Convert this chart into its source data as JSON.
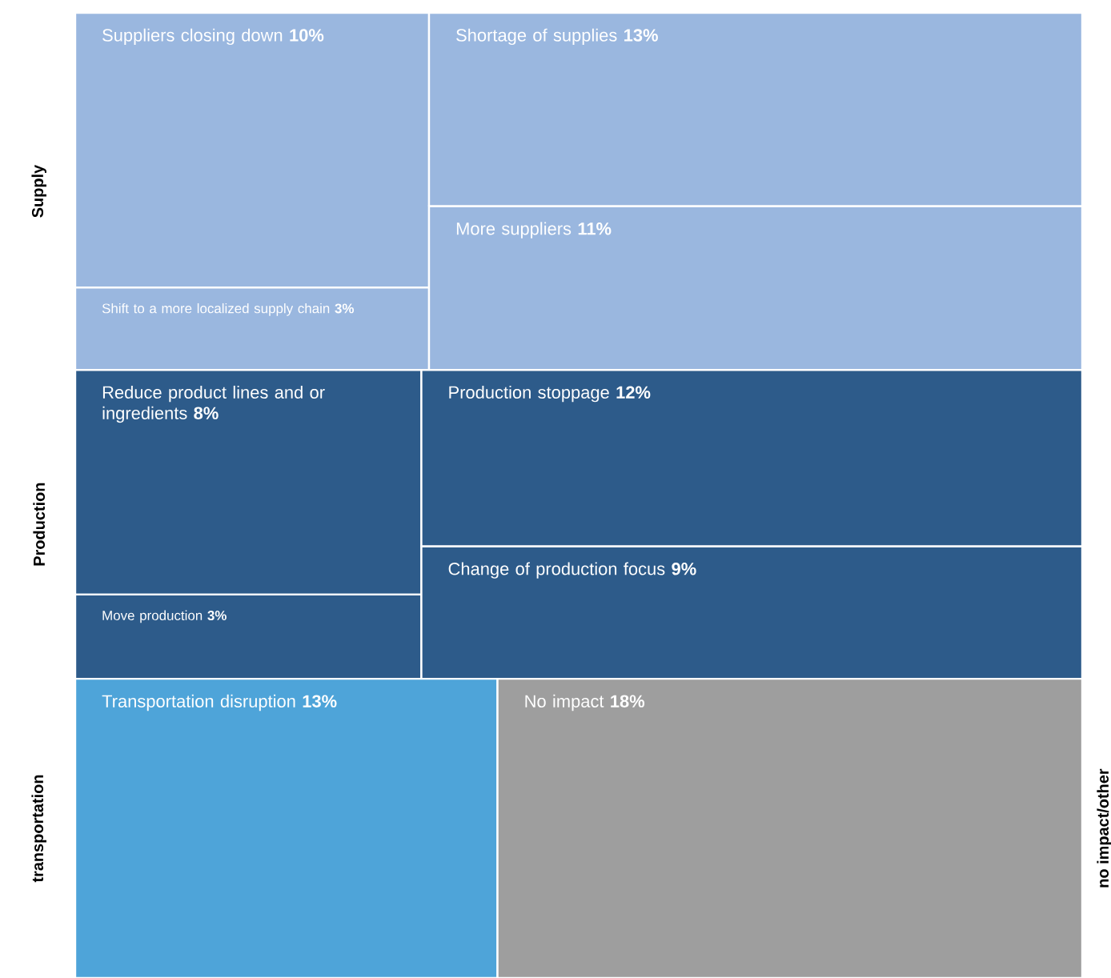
{
  "chart_data": {
    "type": "other",
    "categories": [
      "Suppliers closing down",
      "Shift to a more localized supply chain",
      "Shortage of supplies",
      "More suppliers",
      "Reduce product lines and or ingredients",
      "Move production",
      "Production stoppage",
      "Change of production focus",
      "Transportation disruption",
      "No impact"
    ],
    "series": [
      {
        "name": "Supply",
        "color": "#9ab7df",
        "values": [
          10,
          3,
          13,
          11,
          null,
          null,
          null,
          null,
          null,
          null
        ],
        "value_labels": [
          "10%",
          "3%",
          "13%",
          "11%",
          null,
          null,
          null,
          null,
          null,
          null
        ]
      },
      {
        "name": "Production",
        "color": "#2d5b8a",
        "values": [
          null,
          null,
          null,
          null,
          8,
          3,
          12,
          9,
          null,
          null
        ],
        "value_labels": [
          null,
          null,
          null,
          null,
          "8%",
          "3%",
          "12%",
          "9%",
          null,
          null
        ]
      },
      {
        "name": "transportation",
        "color": "#4ea4d9",
        "values": [
          null,
          null,
          null,
          null,
          null,
          null,
          null,
          null,
          13,
          null
        ],
        "value_labels": [
          null,
          null,
          null,
          null,
          null,
          null,
          null,
          null,
          "13%",
          null
        ]
      },
      {
        "name": "no impact/other",
        "color": "#9e9e9e",
        "values": [
          null,
          null,
          null,
          null,
          null,
          null,
          null,
          null,
          null,
          18
        ],
        "value_labels": [
          null,
          null,
          null,
          null,
          null,
          null,
          null,
          null,
          null,
          "18%"
        ]
      }
    ]
  }
}
